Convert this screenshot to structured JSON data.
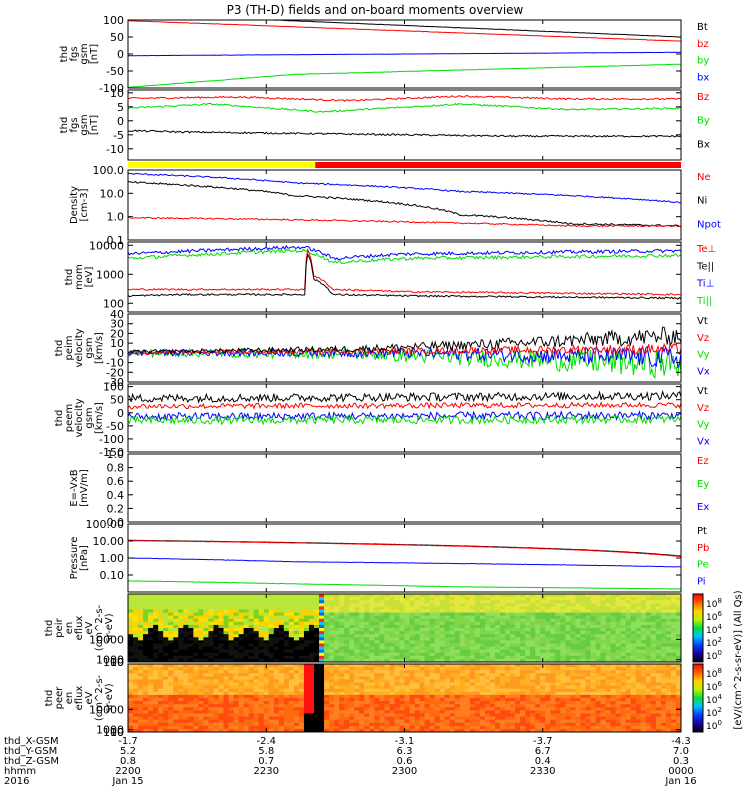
{
  "title": "P3 (TH-D) fields and on-board moments overview",
  "colors": {
    "black": "#000000",
    "red": "#ff0000",
    "blue": "#0000ff",
    "green": "#00dd00",
    "yellow": "#ffff00"
  },
  "chart_data": [
    {
      "id": "fgs_gsm_big",
      "type": "line",
      "ylabel": [
        "thd",
        "fgs",
        "gsm",
        "[nT]"
      ],
      "ylim": [
        -100,
        100
      ],
      "yticks": [
        100,
        50,
        0,
        -50,
        -100
      ],
      "legend": [
        {
          "label": "Bt",
          "color": "black"
        },
        {
          "label": "bz",
          "color": "red"
        },
        {
          "label": "by",
          "color": "green"
        },
        {
          "label": "bx",
          "color": "blue"
        }
      ],
      "series": [
        {
          "name": "Bt",
          "color": "black",
          "x": [
            0,
            1
          ],
          "y": [
            118,
            50
          ],
          "noise": 0.5
        },
        {
          "name": "bz",
          "color": "red",
          "x": [
            0,
            1
          ],
          "y": [
            98,
            38
          ],
          "noise": 0.5
        },
        {
          "name": "by",
          "color": "green",
          "x": [
            0,
            0.3,
            1
          ],
          "y": [
            -98,
            -60,
            -30
          ],
          "noise": 0.5
        },
        {
          "name": "bx",
          "color": "blue",
          "x": [
            0,
            1
          ],
          "y": [
            -5,
            5
          ],
          "noise": 0.3
        }
      ]
    },
    {
      "id": "fgs_gsm_small",
      "type": "line",
      "ylabel": [
        "thd",
        "fgs",
        "gsm",
        "[nT]"
      ],
      "ylim": [
        -14,
        11
      ],
      "yticks": [
        10,
        5,
        0,
        -5,
        -10
      ],
      "legend": [
        {
          "label": "Bz",
          "color": "red"
        },
        {
          "label": "By",
          "color": "green"
        },
        {
          "label": "Bx",
          "color": "black"
        }
      ],
      "series": [
        {
          "name": "Bz",
          "color": "red",
          "x": [
            0,
            0.2,
            0.4,
            0.6,
            0.8,
            1
          ],
          "y": [
            8,
            8.5,
            7.2,
            8.8,
            7.8,
            7.8
          ],
          "noise": 0.3
        },
        {
          "name": "By",
          "color": "green",
          "x": [
            0,
            0.15,
            0.35,
            0.6,
            0.8,
            1
          ],
          "y": [
            4.5,
            6,
            3.2,
            6,
            4,
            4.5
          ],
          "noise": 0.3
        },
        {
          "name": "Bx",
          "color": "black",
          "x": [
            0,
            0.1,
            0.3,
            0.5,
            0.7,
            1
          ],
          "y": [
            -3.5,
            -4,
            -4.5,
            -5,
            -5.5,
            -5.5
          ],
          "noise": 0.3
        }
      ]
    },
    {
      "id": "mode_bar",
      "type": "bar",
      "segments": [
        {
          "x0": 0,
          "x1": 0.3386,
          "color": "yellow"
        },
        {
          "x0": 0.3386,
          "x1": 1,
          "color": "red"
        }
      ]
    },
    {
      "id": "density",
      "type": "line",
      "log": true,
      "ylabel": [
        "Density",
        "[cm-3]"
      ],
      "ylim": [
        0.1,
        100
      ],
      "yticks": [
        100.0,
        10.0,
        1.0,
        0.1
      ],
      "ytick_labels": [
        "100.0",
        "10.0",
        "1.0",
        "0.1"
      ],
      "legend": [
        {
          "label": "Ne",
          "color": "red"
        },
        {
          "label": "Ni",
          "color": "black"
        },
        {
          "label": "Npot",
          "color": "blue"
        }
      ],
      "series": [
        {
          "name": "Npot",
          "color": "blue",
          "x": [
            0,
            0.3,
            0.6,
            1
          ],
          "y": [
            70,
            28,
            12,
            4
          ],
          "noise": 0.03
        },
        {
          "name": "Ni",
          "color": "black",
          "x": [
            0,
            0.3,
            0.6,
            0.8,
            1
          ],
          "y": [
            30,
            8,
            1.2,
            0.5,
            0.4
          ],
          "noise": 0.04
        },
        {
          "name": "Ne",
          "color": "red",
          "x": [
            0,
            0.2,
            0.5,
            0.8,
            1
          ],
          "y": [
            0.9,
            0.8,
            0.6,
            0.4,
            0.4
          ],
          "noise": 0.03
        }
      ]
    },
    {
      "id": "moms_temp",
      "type": "line",
      "log": true,
      "ylabel": [
        "thd",
        "mom",
        "[eV]"
      ],
      "ylim": [
        50,
        13000
      ],
      "yticks": [
        10000,
        1000,
        100
      ],
      "ytick_labels": [
        "10000",
        "1000",
        "100"
      ],
      "legend": [
        {
          "label": "Te⊥",
          "color": "red"
        },
        {
          "label": "Te||",
          "color": "black"
        },
        {
          "label": "Ti⊥",
          "color": "blue"
        },
        {
          "label": "Ti||",
          "color": "green"
        }
      ],
      "series": [
        {
          "name": "Ti⊥",
          "color": "blue",
          "x": [
            0,
            0.3,
            0.32,
            0.37,
            0.5,
            1
          ],
          "y": [
            5000,
            8500,
            8500,
            3500,
            5000,
            6500
          ],
          "noise": 0.06
        },
        {
          "name": "Ti||",
          "color": "green",
          "x": [
            0,
            0.3,
            0.32,
            0.37,
            0.5,
            1
          ],
          "y": [
            3500,
            6500,
            6500,
            2500,
            3500,
            4500
          ],
          "noise": 0.06
        },
        {
          "name": "Te⊥",
          "color": "red",
          "x": [
            0,
            0.1,
            0.1,
            0.32,
            0.325,
            0.335,
            0.37,
            0.5,
            1
          ],
          "y": [
            300,
            300,
            300,
            300,
            7000,
            900,
            300,
            250,
            200
          ],
          "noise": 0.03
        },
        {
          "name": "Te||",
          "color": "black",
          "x": [
            0,
            0.1,
            0.32,
            0.325,
            0.335,
            0.37,
            0.5,
            1
          ],
          "y": [
            180,
            200,
            200,
            5000,
            700,
            200,
            180,
            150
          ],
          "noise": 0.03
        }
      ]
    },
    {
      "id": "peim_velocity",
      "type": "line",
      "ylabel": [
        "thd",
        "peim",
        "velocity",
        "gsm",
        "[km/s]"
      ],
      "ylim": [
        -30,
        40
      ],
      "yticks": [
        40,
        30,
        20,
        10,
        0,
        -10,
        -20,
        -30
      ],
      "legend": [
        {
          "label": "Vt",
          "color": "black"
        },
        {
          "label": "Vz",
          "color": "red"
        },
        {
          "label": "Vy",
          "color": "green"
        },
        {
          "label": "Vx",
          "color": "blue"
        }
      ],
      "series": [
        {
          "name": "Vy",
          "color": "green",
          "x": [
            0,
            0.4,
            0.8,
            1
          ],
          "y": [
            0,
            -1,
            -8,
            -12
          ],
          "noise": 4,
          "noisegrow": 3
        },
        {
          "name": "Vx",
          "color": "blue",
          "x": [
            0,
            0.5,
            0.8,
            1
          ],
          "y": [
            0,
            0,
            -3,
            -5
          ],
          "noise": 3,
          "noisegrow": 3
        },
        {
          "name": "Vz",
          "color": "red",
          "x": [
            0,
            0.5,
            1
          ],
          "y": [
            0,
            2,
            4
          ],
          "noise": 2,
          "noisegrow": 2
        },
        {
          "name": "Vt",
          "color": "black",
          "x": [
            0,
            0.4,
            0.7,
            1
          ],
          "y": [
            1,
            4,
            10,
            18
          ],
          "noise": 2,
          "noisegrow": 4
        }
      ]
    },
    {
      "id": "peem_velocity",
      "type": "line",
      "ylabel": [
        "thd",
        "peem",
        "velocity",
        "gsm",
        "[km/s]"
      ],
      "ylim": [
        -150,
        110
      ],
      "yticks": [
        100,
        50,
        0,
        -50,
        -100,
        -150
      ],
      "legend": [
        {
          "label": "Vt",
          "color": "black"
        },
        {
          "label": "Vz",
          "color": "red"
        },
        {
          "label": "Vy",
          "color": "green"
        },
        {
          "label": "Vx",
          "color": "blue"
        }
      ],
      "series": [
        {
          "name": "Vt",
          "color": "black",
          "x": [
            0,
            1
          ],
          "y": [
            55,
            65
          ],
          "noise": 16
        },
        {
          "name": "Vz",
          "color": "red",
          "x": [
            0,
            1
          ],
          "y": [
            25,
            30
          ],
          "noise": 10
        },
        {
          "name": "Vx",
          "color": "blue",
          "x": [
            0,
            1
          ],
          "y": [
            -15,
            -10
          ],
          "noise": 15
        },
        {
          "name": "Vy",
          "color": "green",
          "x": [
            0,
            1
          ],
          "y": [
            -30,
            -25
          ],
          "noise": 15
        }
      ]
    },
    {
      "id": "exb",
      "type": "line",
      "ylabel": [
        "E=-VxB",
        "[mV/m]"
      ],
      "ylim": [
        0,
        1
      ],
      "yticks": [
        1.0,
        0.8,
        0.6,
        0.4,
        0.2,
        0.0
      ],
      "ytick_labels": [
        "1.0",
        "0.8",
        "0.6",
        "0.4",
        "0.2",
        "0.0"
      ],
      "legend": [
        {
          "label": "Ez",
          "color": "red"
        },
        {
          "label": "Ey",
          "color": "green"
        },
        {
          "label": "Ex",
          "color": "blue"
        }
      ],
      "series": []
    },
    {
      "id": "pressure",
      "type": "line",
      "log": true,
      "ylabel": [
        "Pressure",
        "[nPa]"
      ],
      "ylim": [
        0.01,
        100
      ],
      "yticks": [
        100,
        10,
        1,
        0.1
      ],
      "ytick_labels": [
        "100.00",
        "10.00",
        "1.00",
        "0.10"
      ],
      "legend": [
        {
          "label": "Pt",
          "color": "black"
        },
        {
          "label": "Pb",
          "color": "red"
        },
        {
          "label": "Pe",
          "color": "green"
        },
        {
          "label": "Pi",
          "color": "blue"
        }
      ],
      "series": [
        {
          "name": "Pt",
          "color": "black",
          "x": [
            0,
            1
          ],
          "y": [
            11,
            1.3
          ],
          "noise": 0.005
        },
        {
          "name": "Pb",
          "color": "red",
          "x": [
            0,
            1
          ],
          "y": [
            10.5,
            1.2
          ],
          "noise": 0.005
        },
        {
          "name": "Pi",
          "color": "blue",
          "x": [
            0,
            0.3,
            1
          ],
          "y": [
            1.0,
            0.6,
            0.3
          ],
          "noise": 0.01
        },
        {
          "name": "Pe",
          "color": "green",
          "x": [
            0,
            0.3,
            0.6,
            1
          ],
          "y": [
            0.045,
            0.03,
            0.02,
            0.015
          ],
          "noise": 0.01
        }
      ]
    },
    {
      "id": "peir_spec",
      "type": "heatmap",
      "ylabel": [
        "thd",
        "peir",
        "en",
        "eflux",
        "eV",
        "(cm^2-s-",
        "sr-eV)"
      ],
      "ylim": [
        6,
        30000
      ],
      "yticks": [
        10000,
        1000,
        100,
        10
      ],
      "ytick_labels": [
        "10000",
        "1000",
        "100",
        "10"
      ],
      "colorbar_ticks": [
        "10^8",
        "10^6",
        "10^4",
        "10^2",
        "10^0"
      ]
    },
    {
      "id": "peer_spec",
      "type": "heatmap",
      "ylabel": [
        "thd",
        "peer",
        "en",
        "eflux",
        "eV",
        "(cm^2-s-",
        "sr-eV)"
      ],
      "ylim": [
        6,
        30000
      ],
      "yticks": [
        10000,
        1000,
        100,
        10
      ],
      "ytick_labels": [
        "10000",
        "1000",
        "100",
        "10"
      ],
      "colorbar_ticks": [
        "10^8",
        "10^6",
        "10^4",
        "10^2",
        "10^0"
      ]
    }
  ],
  "colorbar_label": "[eV/(cm^2-s-sr-eV)] (All Qs)",
  "xaxis": {
    "rows": [
      {
        "label": "thd_X-GSM",
        "values": [
          "-1.7",
          "-2.4",
          "-3.1",
          "-3.7",
          "-4.3"
        ]
      },
      {
        "label": "thd_Y-GSM",
        "values": [
          "5.2",
          "5.8",
          "6.3",
          "6.7",
          "7.0"
        ]
      },
      {
        "label": "thd_Z-GSM",
        "values": [
          "0.8",
          "0.7",
          "0.6",
          "0.4",
          "0.3"
        ]
      },
      {
        "label": "hhmm",
        "values": [
          "2200",
          "2230",
          "2300",
          "2330",
          "0000"
        ]
      },
      {
        "label": "2016",
        "values": [
          "Jan 15",
          "",
          "",
          "",
          "Jan 16"
        ]
      }
    ]
  }
}
